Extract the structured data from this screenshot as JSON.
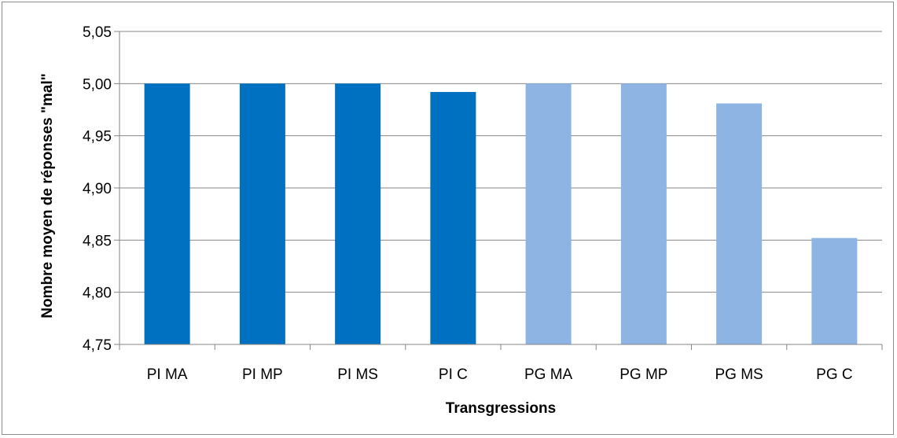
{
  "chart_data": {
    "type": "bar",
    "title": "",
    "xlabel": "Transgressions",
    "ylabel": "Nombre moyen de réponses \"mal\"",
    "categories": [
      "PI MA",
      "PI MP",
      "PI MS",
      "PI C",
      "PG MA",
      "PG MP",
      "PG MS",
      "PG C"
    ],
    "values": [
      5.0,
      5.0,
      5.0,
      4.992,
      5.0,
      5.0,
      4.981,
      4.852
    ],
    "ylim": [
      4.75,
      5.05
    ],
    "yticks": [
      4.75,
      4.8,
      4.85,
      4.9,
      4.95,
      5.0,
      5.05
    ],
    "ytick_labels": [
      "4,75",
      "4,80",
      "4,85",
      "4,90",
      "4,95",
      "5,00",
      "5,05"
    ],
    "grid": true,
    "legend": "none",
    "colors": {
      "groups": [
        "#0070c0",
        "#0070c0",
        "#0070c0",
        "#0070c0",
        "#8db4e2",
        "#8db4e2",
        "#8db4e2",
        "#8db4e2"
      ],
      "gridline": "#868686",
      "axis": "#868686"
    }
  }
}
